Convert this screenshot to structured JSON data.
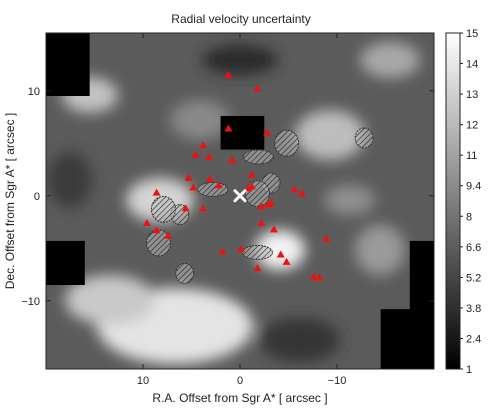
{
  "chart_data": {
    "type": "heatmap",
    "title": "Radial velocity uncertainty",
    "xlabel": "R.A. Offset from Sgr A* [ arcsec ]",
    "ylabel": "Dec. Offset from Sgr A* [ arcsec ]",
    "xlim": [
      20,
      -20
    ],
    "ylim": [
      -16.5,
      15.5
    ],
    "xticks": [
      -10,
      0,
      10
    ],
    "yticks": [
      -10,
      0,
      10
    ],
    "colorbar": {
      "min": 1,
      "max": 15,
      "ticks": [
        "1",
        "2.4",
        "3.8",
        "5.2",
        "6.6",
        "8",
        "9.4",
        "11",
        "12",
        "13",
        "14",
        "15"
      ],
      "colormap": "grayscale"
    },
    "grid": false,
    "center_marker": {
      "label": "Sgr A*",
      "x": 0,
      "y": 0,
      "symbol": "x",
      "color": "#ffffff"
    },
    "triangle_markers": {
      "color": "#ee1111",
      "points": [
        [
          1.2,
          11.5
        ],
        [
          -1.8,
          10.2
        ],
        [
          1.2,
          6.4
        ],
        [
          -2.8,
          6.0
        ],
        [
          3.8,
          4.8
        ],
        [
          4.6,
          3.9
        ],
        [
          0.8,
          3.4
        ],
        [
          3.2,
          3.7
        ],
        [
          -1.2,
          2.0
        ],
        [
          5.3,
          1.7
        ],
        [
          2.2,
          1.0
        ],
        [
          3.1,
          1.6
        ],
        [
          4.8,
          0.8
        ],
        [
          -1.2,
          0.9
        ],
        [
          -5.6,
          0.6
        ],
        [
          -0.8,
          0.7
        ],
        [
          -6.4,
          0.2
        ],
        [
          8.6,
          0.3
        ],
        [
          -3.2,
          -0.7
        ],
        [
          -2.2,
          -1.0
        ],
        [
          -2.9,
          -0.8
        ],
        [
          3.8,
          -1.2
        ],
        [
          5.6,
          -1.2
        ],
        [
          -2.2,
          -2.6
        ],
        [
          -3.5,
          -3.2
        ],
        [
          9.6,
          -2.6
        ],
        [
          8.6,
          -3.3
        ],
        [
          7.4,
          -3.8
        ],
        [
          -8.9,
          -4.1
        ],
        [
          -1.8,
          -6.9
        ],
        [
          -7.6,
          -7.7
        ],
        [
          -8.2,
          -7.8
        ],
        [
          -0.1,
          -5.1
        ],
        [
          1.8,
          -5.3
        ],
        [
          -4.2,
          -5.6
        ],
        [
          -4.8,
          -6.3
        ]
      ]
    },
    "hatched_regions": [
      [
        -12.8,
        5.5
      ],
      [
        -4.8,
        5.0
      ],
      [
        -1.9,
        3.7
      ],
      [
        -3.2,
        1.2
      ],
      [
        -1.8,
        0.2
      ],
      [
        2.8,
        0.6
      ],
      [
        6.2,
        -1.8
      ],
      [
        7.9,
        -1.3
      ],
      [
        -1.8,
        -5.4
      ],
      [
        5.7,
        -7.4
      ],
      [
        8.4,
        -4.5
      ]
    ],
    "masked_regions": [
      {
        "x": [
          -2.5,
          2.0
        ],
        "y": [
          4.4,
          7.6
        ]
      },
      {
        "x": [
          15.5,
          20
        ],
        "y": [
          9.5,
          15.5
        ]
      },
      {
        "x": [
          16.0,
          20
        ],
        "y": [
          -8.5,
          -4.3
        ]
      },
      {
        "x": [
          -20,
          -17.5
        ],
        "y": [
          -16.5,
          -4.3
        ]
      },
      {
        "x": [
          -20,
          -14.5
        ],
        "y": [
          -16.5,
          -10.8
        ]
      }
    ]
  }
}
